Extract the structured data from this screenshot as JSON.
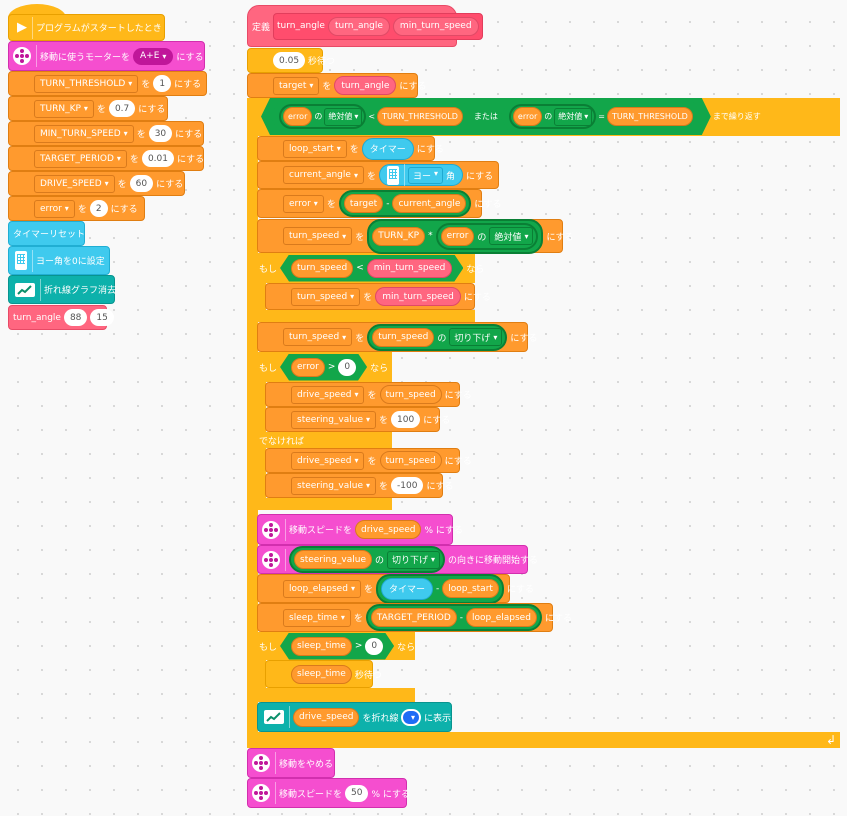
{
  "colors": {
    "variables": "#ff9a2e",
    "control": "#ffb819",
    "motor": "#f54ecf",
    "sensor": "#3fcaee",
    "chart": "#0db1ab",
    "operator": "#12a64a",
    "my_block": "#ff6680"
  },
  "left_script": [
    {
      "tokens": [
        {
          "k": "icon",
          "v": "play-icon"
        },
        {
          "k": "text",
          "v": "プログラムがスタートしたとき"
        }
      ]
    },
    {
      "tokens": [
        {
          "k": "icon",
          "v": "motor-icon"
        },
        {
          "k": "text",
          "v": "移動に使うモーターを"
        },
        {
          "k": "mdrop",
          "v": "A+E"
        },
        {
          "k": "text",
          "v": "にする"
        }
      ]
    },
    {
      "tokens": [
        {
          "k": "drop",
          "v": "TURN_THRESHOLD"
        },
        {
          "k": "text",
          "v": "を"
        },
        {
          "k": "num",
          "v": "1"
        },
        {
          "k": "text",
          "v": "にする"
        }
      ]
    },
    {
      "tokens": [
        {
          "k": "drop",
          "v": "TURN_KP"
        },
        {
          "k": "text",
          "v": "を"
        },
        {
          "k": "num",
          "v": "0.7"
        },
        {
          "k": "text",
          "v": "にする"
        }
      ]
    },
    {
      "tokens": [
        {
          "k": "drop",
          "v": "MIN_TURN_SPEED"
        },
        {
          "k": "text",
          "v": "を"
        },
        {
          "k": "num",
          "v": "30"
        },
        {
          "k": "text",
          "v": "にする"
        }
      ]
    },
    {
      "tokens": [
        {
          "k": "drop",
          "v": "TARGET_PERIOD"
        },
        {
          "k": "text",
          "v": "を"
        },
        {
          "k": "num",
          "v": "0.01"
        },
        {
          "k": "text",
          "v": "にする"
        }
      ]
    },
    {
      "tokens": [
        {
          "k": "drop",
          "v": "DRIVE_SPEED"
        },
        {
          "k": "text",
          "v": "を"
        },
        {
          "k": "num",
          "v": "60"
        },
        {
          "k": "text",
          "v": "にする"
        }
      ]
    },
    {
      "tokens": [
        {
          "k": "drop",
          "v": "error"
        },
        {
          "k": "text",
          "v": "を"
        },
        {
          "k": "num",
          "v": "2"
        },
        {
          "k": "text",
          "v": "にする"
        }
      ]
    },
    {
      "tokens": [
        {
          "k": "text",
          "v": "タイマーリセット"
        }
      ]
    },
    {
      "tokens": [
        {
          "k": "icon",
          "v": "hub-icon"
        },
        {
          "k": "text",
          "v": "ヨー角を0に設定"
        }
      ]
    },
    {
      "tokens": [
        {
          "k": "icon",
          "v": "chart-icon"
        },
        {
          "k": "text",
          "v": "折れ線グラフ消去"
        }
      ]
    },
    {
      "tokens": [
        {
          "k": "text",
          "v": "turn_angle"
        },
        {
          "k": "num",
          "v": "88"
        },
        {
          "k": "num",
          "v": "15"
        }
      ]
    }
  ],
  "right_script": [
    {
      "tokens": [
        {
          "k": "text",
          "v": "定義"
        },
        {
          "k": "proto",
          "items": [
            {
              "k": "text",
              "v": "turn_angle"
            },
            {
              "k": "pinkvar",
              "v": "turn_angle"
            },
            {
              "k": "pinkvar",
              "v": "min_turn_speed"
            }
          ]
        }
      ]
    },
    {
      "tokens": [
        {
          "k": "num",
          "v": "0.05"
        },
        {
          "k": "text",
          "v": "秒待つ"
        }
      ]
    },
    {
      "tokens": [
        {
          "k": "drop",
          "v": "target"
        },
        {
          "k": "text",
          "v": "を"
        },
        {
          "k": "pinkvar",
          "v": "turn_angle"
        },
        {
          "k": "text",
          "v": "にする"
        }
      ]
    },
    {
      "tokens": [
        {
          "k": "hex",
          "items": [
            {
              "k": "hex",
              "items": [
                {
                  "k": "op",
                  "items": [
                    {
                      "k": "var",
                      "v": "error"
                    },
                    {
                      "k": "text",
                      "v": "の"
                    },
                    {
                      "k": "gdrop",
                      "v": "絶対値"
                    }
                  ]
                },
                {
                  "k": "text",
                  "v": "<"
                },
                {
                  "k": "var",
                  "v": "TURN_THRESHOLD"
                }
              ]
            },
            {
              "k": "text",
              "v": "または"
            },
            {
              "k": "hex",
              "items": [
                {
                  "k": "op",
                  "items": [
                    {
                      "k": "var",
                      "v": "error"
                    },
                    {
                      "k": "text",
                      "v": "の"
                    },
                    {
                      "k": "gdrop",
                      "v": "絶対値"
                    }
                  ]
                },
                {
                  "k": "text",
                  "v": "="
                },
                {
                  "k": "var",
                  "v": "TURN_THRESHOLD"
                }
              ]
            }
          ]
        },
        {
          "k": "text",
          "v": "まで繰り返す"
        }
      ]
    },
    {
      "tokens": [
        {
          "k": "drop",
          "v": "loop_start"
        },
        {
          "k": "text",
          "v": "を"
        },
        {
          "k": "blue",
          "v": "タイマー"
        },
        {
          "k": "text",
          "v": "にする"
        }
      ]
    },
    {
      "tokens": [
        {
          "k": "drop",
          "v": "current_angle"
        },
        {
          "k": "text",
          "v": "を"
        },
        {
          "k": "blue",
          "items": [
            {
              "k": "icon",
              "v": "hub-icon"
            },
            {
              "k": "cdrop",
              "v": "ヨー"
            },
            {
              "k": "text",
              "v": "角"
            }
          ]
        },
        {
          "k": "text",
          "v": "にする"
        }
      ]
    },
    {
      "tokens": [
        {
          "k": "drop",
          "v": "error"
        },
        {
          "k": "text",
          "v": "を"
        },
        {
          "k": "op",
          "items": [
            {
              "k": "var",
              "v": "target"
            },
            {
              "k": "text",
              "v": "-"
            },
            {
              "k": "var",
              "v": "current_angle"
            }
          ]
        },
        {
          "k": "text",
          "v": "にする"
        }
      ]
    },
    {
      "tokens": [
        {
          "k": "drop",
          "v": "turn_speed"
        },
        {
          "k": "text",
          "v": "を"
        },
        {
          "k": "op",
          "items": [
            {
              "k": "var",
              "v": "TURN_KP"
            },
            {
              "k": "text",
              "v": "*"
            },
            {
              "k": "op",
              "items": [
                {
                  "k": "var",
                  "v": "error"
                },
                {
                  "k": "text",
                  "v": "の"
                },
                {
                  "k": "gdrop",
                  "v": "絶対値"
                }
              ]
            }
          ]
        },
        {
          "k": "text",
          "v": "にする"
        }
      ]
    },
    {
      "tokens": [
        {
          "k": "text",
          "v": "もし"
        },
        {
          "k": "hex",
          "items": [
            {
              "k": "var",
              "v": "turn_speed"
            },
            {
              "k": "text",
              "v": "<"
            },
            {
              "k": "pinkvar",
              "v": "min_turn_speed"
            }
          ]
        },
        {
          "k": "text",
          "v": "なら"
        }
      ]
    },
    {
      "tokens": [
        {
          "k": "drop",
          "v": "turn_speed"
        },
        {
          "k": "text",
          "v": "を"
        },
        {
          "k": "pinkvar",
          "v": "min_turn_speed"
        },
        {
          "k": "text",
          "v": "にする"
        }
      ]
    },
    {
      "tokens": [
        {
          "k": "drop",
          "v": "turn_speed"
        },
        {
          "k": "text",
          "v": "を"
        },
        {
          "k": "op",
          "items": [
            {
              "k": "var",
              "v": "turn_speed"
            },
            {
              "k": "text",
              "v": "の"
            },
            {
              "k": "gdrop",
              "v": "切り下げ"
            }
          ]
        },
        {
          "k": "text",
          "v": "にする"
        }
      ]
    },
    {
      "tokens": [
        {
          "k": "text",
          "v": "もし"
        },
        {
          "k": "hex",
          "items": [
            {
              "k": "var",
              "v": "error"
            },
            {
              "k": "text",
              "v": ">"
            },
            {
              "k": "num",
              "v": "0"
            }
          ]
        },
        {
          "k": "text",
          "v": "なら"
        }
      ]
    },
    {
      "tokens": [
        {
          "k": "drop",
          "v": "drive_speed"
        },
        {
          "k": "text",
          "v": "を"
        },
        {
          "k": "var",
          "v": "turn_speed"
        },
        {
          "k": "text",
          "v": "にする"
        }
      ]
    },
    {
      "tokens": [
        {
          "k": "drop",
          "v": "steering_value"
        },
        {
          "k": "text",
          "v": "を"
        },
        {
          "k": "num",
          "v": "100"
        },
        {
          "k": "text",
          "v": "にする"
        }
      ]
    },
    {
      "tokens": [
        {
          "k": "text",
          "v": "でなければ"
        }
      ]
    },
    {
      "tokens": [
        {
          "k": "drop",
          "v": "drive_speed"
        },
        {
          "k": "text",
          "v": "を"
        },
        {
          "k": "var",
          "v": "turn_speed"
        },
        {
          "k": "text",
          "v": "にする"
        }
      ]
    },
    {
      "tokens": [
        {
          "k": "drop",
          "v": "steering_value"
        },
        {
          "k": "text",
          "v": "を"
        },
        {
          "k": "num",
          "v": "-100"
        },
        {
          "k": "text",
          "v": "にする"
        }
      ]
    },
    {
      "tokens": [
        {
          "k": "icon",
          "v": "motor-icon"
        },
        {
          "k": "text",
          "v": "移動スピードを"
        },
        {
          "k": "var",
          "v": "drive_speed"
        },
        {
          "k": "text",
          "v": "% にする"
        }
      ]
    },
    {
      "tokens": [
        {
          "k": "icon",
          "v": "motor-icon"
        },
        {
          "k": "op",
          "items": [
            {
              "k": "var",
              "v": "steering_value"
            },
            {
              "k": "text",
              "v": "の"
            },
            {
              "k": "gdrop",
              "v": "切り下げ"
            }
          ]
        },
        {
          "k": "text",
          "v": "の向きに移動開始する"
        }
      ]
    },
    {
      "tokens": [
        {
          "k": "drop",
          "v": "loop_elapsed"
        },
        {
          "k": "text",
          "v": "を"
        },
        {
          "k": "op",
          "items": [
            {
              "k": "blue",
              "v": "タイマー"
            },
            {
              "k": "text",
              "v": "-"
            },
            {
              "k": "var",
              "v": "loop_start"
            }
          ]
        },
        {
          "k": "text",
          "v": "にする"
        }
      ]
    },
    {
      "tokens": [
        {
          "k": "drop",
          "v": "sleep_time"
        },
        {
          "k": "text",
          "v": "を"
        },
        {
          "k": "op",
          "items": [
            {
              "k": "var",
              "v": "TARGET_PERIOD"
            },
            {
              "k": "text",
              "v": "-"
            },
            {
              "k": "var",
              "v": "loop_elapsed"
            }
          ]
        },
        {
          "k": "text",
          "v": "にする"
        }
      ]
    },
    {
      "tokens": [
        {
          "k": "text",
          "v": "もし"
        },
        {
          "k": "hex",
          "items": [
            {
              "k": "var",
              "v": "sleep_time"
            },
            {
              "k": "text",
              "v": ">"
            },
            {
              "k": "num",
              "v": "0"
            }
          ]
        },
        {
          "k": "text",
          "v": "なら"
        }
      ]
    },
    {
      "tokens": [
        {
          "k": "var",
          "v": "sleep_time"
        },
        {
          "k": "text",
          "v": "秒待つ"
        }
      ]
    },
    {
      "tokens": [
        {
          "k": "icon",
          "v": "chart-icon"
        },
        {
          "k": "var",
          "v": "drive_speed"
        },
        {
          "k": "text",
          "v": "を折れ線"
        },
        {
          "k": "colordrop"
        },
        {
          "k": "text",
          "v": "に表示"
        }
      ]
    },
    {
      "tokens": [
        {
          "k": "icon",
          "v": "motor-icon"
        },
        {
          "k": "text",
          "v": "移動をやめる"
        }
      ]
    },
    {
      "tokens": [
        {
          "k": "icon",
          "v": "motor-icon"
        },
        {
          "k": "text",
          "v": "移動スピードを"
        },
        {
          "k": "num",
          "v": "50"
        },
        {
          "k": "text",
          "v": "% にする"
        }
      ]
    }
  ],
  "loop_arrow_icon": "loop-arrow-icon"
}
